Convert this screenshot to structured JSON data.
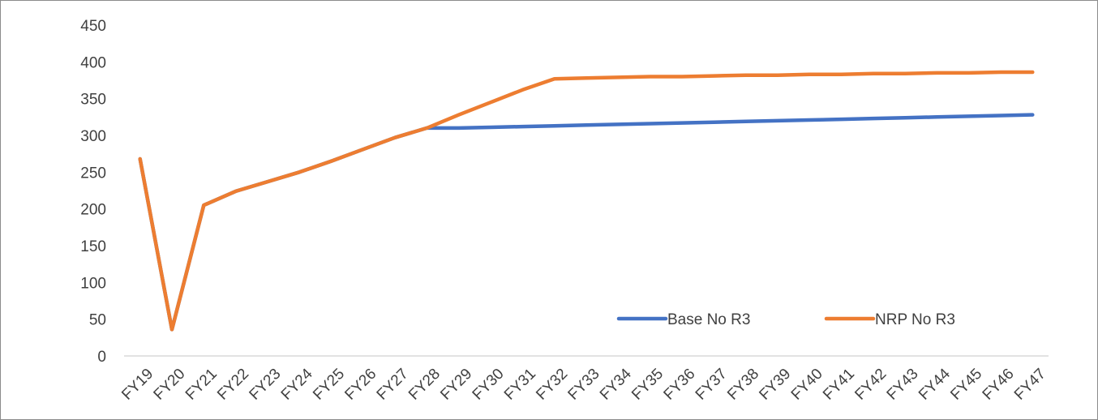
{
  "chart_data": {
    "type": "line",
    "categories": [
      "FY19",
      "FY20",
      "FY21",
      "FY22",
      "FY23",
      "FY24",
      "FY25",
      "FY26",
      "FY27",
      "FY28",
      "FY29",
      "FY30",
      "FY31",
      "FY32",
      "FY33",
      "FY34",
      "FY35",
      "FY36",
      "FY37",
      "FY38",
      "FY39",
      "FY40",
      "FY41",
      "FY42",
      "FY43",
      "FY44",
      "FY45",
      "FY46",
      "FY47"
    ],
    "series": [
      {
        "name": "Base No R3",
        "color": "#4472C4",
        "values": [
          268,
          36,
          205,
          224,
          237,
          250,
          265,
          281,
          297,
          310,
          310,
          311,
          312,
          313,
          314,
          315,
          316,
          317,
          318,
          319,
          320,
          321,
          322,
          323,
          324,
          325,
          326,
          327,
          328
        ]
      },
      {
        "name": "NRP No R3",
        "color": "#ED7D31",
        "values": [
          268,
          36,
          205,
          224,
          237,
          250,
          265,
          281,
          297,
          310,
          328,
          345,
          362,
          377,
          378,
          379,
          380,
          380,
          381,
          382,
          382,
          383,
          383,
          384,
          384,
          385,
          385,
          386,
          386
        ]
      }
    ],
    "ylim": [
      0,
      450
    ],
    "yticks": [
      0,
      50,
      100,
      150,
      200,
      250,
      300,
      350,
      400,
      450
    ],
    "grid": false,
    "legend_position": "inside-bottom-right"
  }
}
